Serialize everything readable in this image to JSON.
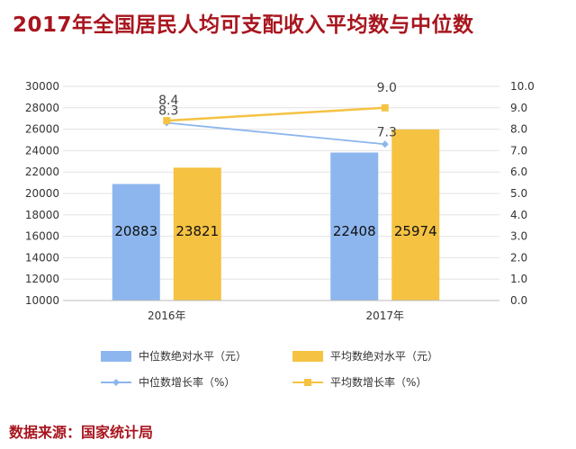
{
  "title": "2017年全国居民人均可支配收入平均数与中位数",
  "source": "数据来源：国家统计局",
  "colors": {
    "title": "#a8151e",
    "median_bar": "#8db6ee",
    "mean_bar": "#f5c242",
    "median_line": "#8db6ee",
    "mean_line": "#f5c242",
    "grid": "#e2e2e2"
  },
  "chart_data": {
    "type": "bar",
    "categories": [
      "2016年",
      "2017年"
    ],
    "series": [
      {
        "name": "中位数绝对水平（元）",
        "type": "bar",
        "axis": "left",
        "values": [
          20883,
          23821
        ]
      },
      {
        "name": "平均数绝对水平（元）",
        "type": "bar",
        "axis": "left",
        "values": [
          22408,
          25974
        ]
      },
      {
        "name": "中位数增长率（%）",
        "type": "line",
        "axis": "right",
        "values": [
          8.3,
          7.3
        ]
      },
      {
        "name": "平均数增长率（%）",
        "type": "line",
        "axis": "right",
        "values": [
          8.4,
          9.0
        ]
      }
    ],
    "bar_labels": [
      [
        "20883",
        "23821"
      ],
      [
        "22408",
        "25974"
      ]
    ],
    "line_labels": [
      [
        "8.3",
        "7.3"
      ],
      [
        "8.4",
        "9.0"
      ]
    ],
    "y_left": {
      "min": 10000,
      "max": 30000,
      "step": 2000,
      "ticks": [
        "10000",
        "12000",
        "14000",
        "16000",
        "18000",
        "20000",
        "22000",
        "24000",
        "26000",
        "28000",
        "30000"
      ]
    },
    "y_right": {
      "min": 0,
      "max": 10,
      "step": 1,
      "ticks": [
        "0.0",
        "1.0",
        "2.0",
        "3.0",
        "4.0",
        "5.0",
        "6.0",
        "7.0",
        "8.0",
        "9.0",
        "10.0"
      ]
    },
    "grid": true,
    "legend_position": "bottom"
  }
}
